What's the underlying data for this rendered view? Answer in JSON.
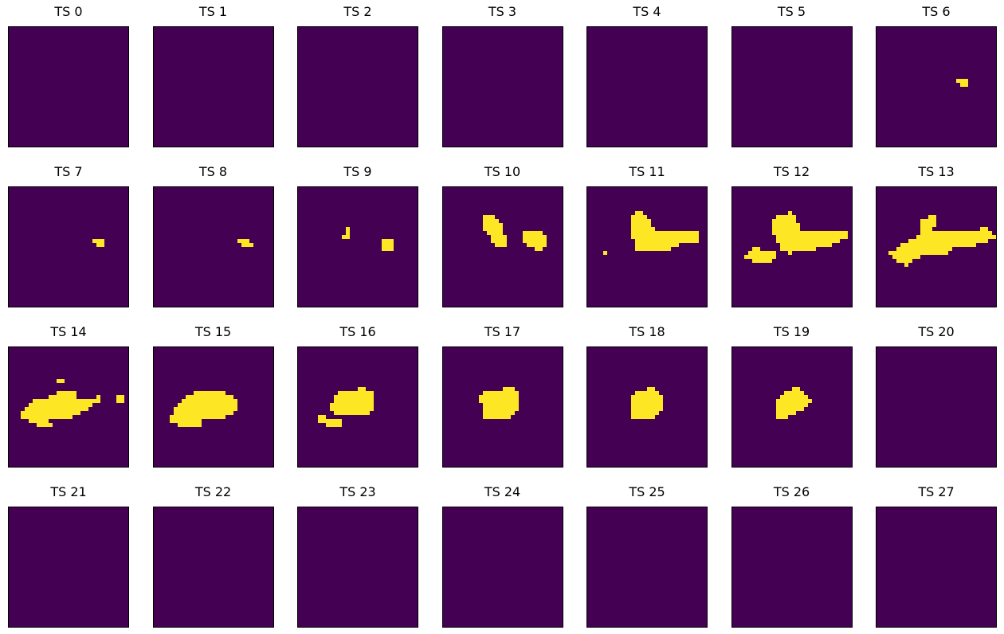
{
  "chart_data": {
    "type": "heatmap",
    "title": "",
    "grid_size": 30,
    "colormap": {
      "background": "#440154",
      "foreground": "#fde725"
    },
    "axes": "hidden",
    "panels": [
      {
        "title": "TS 0",
        "cells": []
      },
      {
        "title": "TS 1",
        "cells": []
      },
      {
        "title": "TS 2",
        "cells": []
      },
      {
        "title": "TS 3",
        "cells": []
      },
      {
        "title": "TS 4",
        "cells": []
      },
      {
        "title": "TS 5",
        "cells": []
      },
      {
        "title": "TS 6",
        "cells": [
          [
            13,
            20,
            22
          ],
          [
            14,
            21,
            22
          ]
        ]
      },
      {
        "title": "TS 7",
        "cells": [
          [
            13,
            21,
            23
          ],
          [
            14,
            22,
            23
          ]
        ]
      },
      {
        "title": "TS 8",
        "cells": [
          [
            13,
            21,
            23
          ],
          [
            14,
            22,
            24
          ]
        ]
      },
      {
        "title": "TS 9",
        "cells": [
          [
            10,
            12,
            12
          ],
          [
            11,
            12,
            12
          ],
          [
            12,
            11,
            12
          ],
          [
            13,
            21,
            23
          ],
          [
            14,
            21,
            23
          ],
          [
            15,
            21,
            23
          ]
        ]
      },
      {
        "title": "TS 10",
        "cells": [
          [
            7,
            10,
            12
          ],
          [
            8,
            10,
            13
          ],
          [
            9,
            10,
            14
          ],
          [
            10,
            10,
            14
          ],
          [
            11,
            11,
            14
          ],
          [
            12,
            12,
            15
          ],
          [
            13,
            12,
            15
          ],
          [
            14,
            13,
            15
          ],
          [
            11,
            20,
            24
          ],
          [
            12,
            20,
            25
          ],
          [
            13,
            20,
            25
          ],
          [
            14,
            21,
            25
          ],
          [
            15,
            23,
            24
          ]
        ]
      },
      {
        "title": "TS 11",
        "cells": [
          [
            6,
            12,
            13
          ],
          [
            7,
            11,
            14
          ],
          [
            8,
            11,
            15
          ],
          [
            9,
            11,
            15
          ],
          [
            10,
            11,
            16
          ],
          [
            11,
            11,
            27
          ],
          [
            12,
            11,
            27
          ],
          [
            13,
            12,
            27
          ],
          [
            14,
            12,
            22
          ],
          [
            15,
            12,
            20
          ],
          [
            16,
            4,
            4
          ]
        ]
      },
      {
        "title": "TS 12",
        "cells": [
          [
            6,
            14,
            14
          ],
          [
            7,
            11,
            15
          ],
          [
            8,
            10,
            15
          ],
          [
            9,
            10,
            16
          ],
          [
            10,
            10,
            16
          ],
          [
            11,
            10,
            28
          ],
          [
            12,
            11,
            28
          ],
          [
            13,
            11,
            26
          ],
          [
            14,
            12,
            24
          ],
          [
            15,
            12,
            20
          ],
          [
            16,
            14,
            14
          ],
          [
            15,
            5,
            6
          ],
          [
            16,
            4,
            10
          ],
          [
            17,
            3,
            10
          ],
          [
            18,
            5,
            9
          ]
        ]
      },
      {
        "title": "TS 13",
        "cells": [
          [
            7,
            13,
            14
          ],
          [
            8,
            11,
            14
          ],
          [
            9,
            11,
            14
          ],
          [
            10,
            11,
            13
          ],
          [
            11,
            11,
            28
          ],
          [
            12,
            10,
            29
          ],
          [
            13,
            8,
            27
          ],
          [
            14,
            6,
            24
          ],
          [
            15,
            5,
            18
          ],
          [
            16,
            3,
            17
          ],
          [
            17,
            4,
            10
          ],
          [
            18,
            5,
            8
          ],
          [
            19,
            7,
            7
          ],
          [
            10,
            26,
            27
          ],
          [
            11,
            28,
            28
          ]
        ]
      },
      {
        "title": "TS 14",
        "cells": [
          [
            8,
            12,
            13
          ],
          [
            11,
            12,
            16
          ],
          [
            12,
            10,
            16
          ],
          [
            13,
            6,
            22
          ],
          [
            14,
            5,
            20
          ],
          [
            15,
            4,
            19
          ],
          [
            16,
            3,
            17
          ],
          [
            17,
            3,
            15
          ],
          [
            18,
            5,
            9
          ],
          [
            19,
            7,
            10
          ],
          [
            12,
            22,
            22
          ],
          [
            13,
            22,
            22
          ],
          [
            12,
            27,
            28
          ],
          [
            13,
            27,
            28
          ]
        ]
      },
      {
        "title": "TS 15",
        "cells": [
          [
            11,
            10,
            17
          ],
          [
            12,
            8,
            19
          ],
          [
            13,
            7,
            20
          ],
          [
            14,
            6,
            20
          ],
          [
            15,
            5,
            20
          ],
          [
            16,
            5,
            19
          ],
          [
            17,
            4,
            17
          ],
          [
            18,
            4,
            11
          ],
          [
            19,
            6,
            11
          ]
        ]
      },
      {
        "title": "TS 16",
        "cells": [
          [
            10,
            15,
            16
          ],
          [
            11,
            10,
            18
          ],
          [
            12,
            9,
            18
          ],
          [
            13,
            9,
            18
          ],
          [
            14,
            8,
            18
          ],
          [
            15,
            8,
            18
          ],
          [
            16,
            9,
            17
          ],
          [
            17,
            5,
            6
          ],
          [
            18,
            5,
            10
          ],
          [
            19,
            7,
            10
          ]
        ]
      },
      {
        "title": "TS 17",
        "cells": [
          [
            10,
            15,
            17
          ],
          [
            11,
            10,
            18
          ],
          [
            12,
            9,
            18
          ],
          [
            13,
            9,
            18
          ],
          [
            14,
            10,
            18
          ],
          [
            15,
            10,
            18
          ],
          [
            16,
            10,
            17
          ],
          [
            17,
            10,
            16
          ]
        ]
      },
      {
        "title": "TS 18",
        "cells": [
          [
            10,
            15,
            16
          ],
          [
            11,
            12,
            17
          ],
          [
            12,
            11,
            18
          ],
          [
            13,
            11,
            18
          ],
          [
            14,
            11,
            18
          ],
          [
            15,
            11,
            18
          ],
          [
            16,
            11,
            17
          ],
          [
            17,
            11,
            16
          ]
        ]
      },
      {
        "title": "TS 19",
        "cells": [
          [
            10,
            15,
            16
          ],
          [
            11,
            13,
            17
          ],
          [
            12,
            12,
            18
          ],
          [
            13,
            11,
            19
          ],
          [
            14,
            11,
            18
          ],
          [
            15,
            11,
            17
          ],
          [
            16,
            11,
            15
          ],
          [
            17,
            11,
            13
          ]
        ]
      },
      {
        "title": "TS 20",
        "cells": []
      },
      {
        "title": "TS 21",
        "cells": []
      },
      {
        "title": "TS 22",
        "cells": []
      },
      {
        "title": "TS 23",
        "cells": []
      },
      {
        "title": "TS 24",
        "cells": []
      },
      {
        "title": "TS 25",
        "cells": []
      },
      {
        "title": "TS 26",
        "cells": []
      },
      {
        "title": "TS 27",
        "cells": []
      }
    ]
  }
}
